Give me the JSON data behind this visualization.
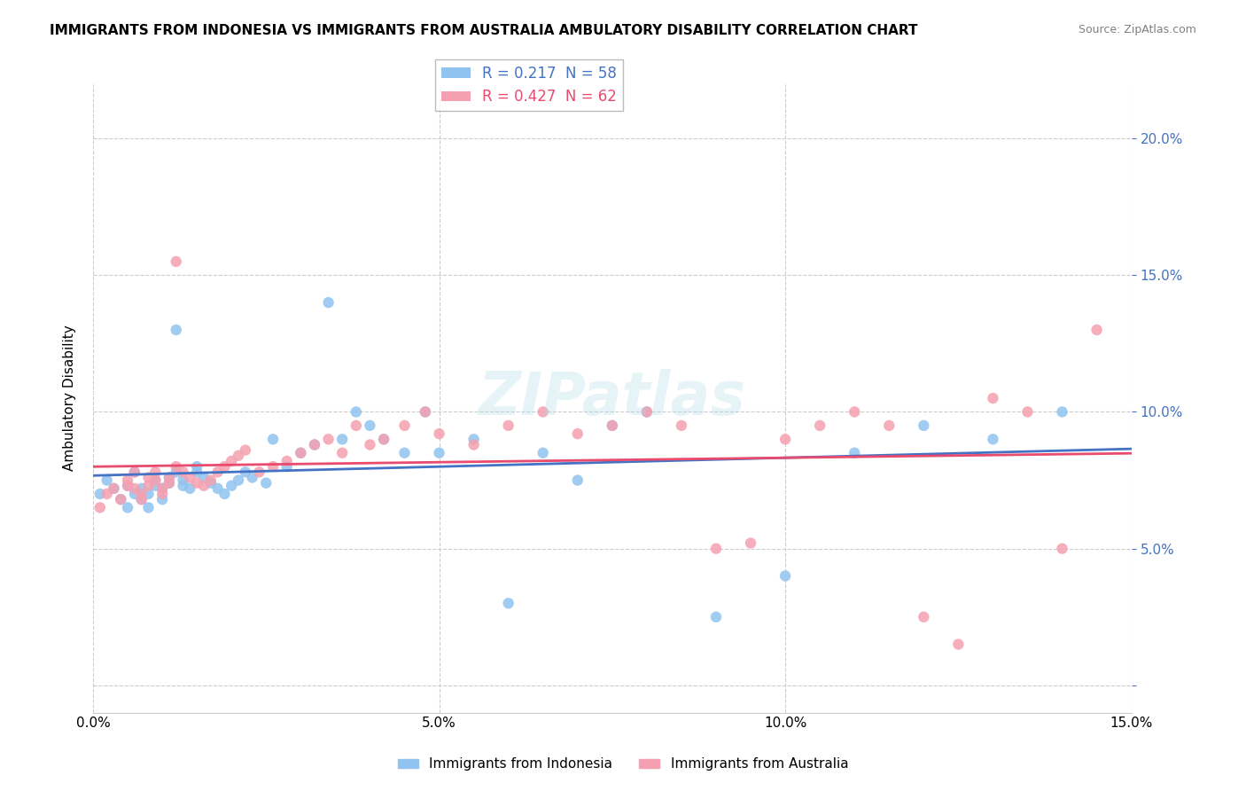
{
  "title": "IMMIGRANTS FROM INDONESIA VS IMMIGRANTS FROM AUSTRALIA AMBULATORY DISABILITY CORRELATION CHART",
  "source": "Source: ZipAtlas.com",
  "xlabel": "",
  "ylabel": "Ambulatory Disability",
  "x_axis_label_bottom": "",
  "legend_label_1": "Immigrants from Indonesia",
  "legend_label_2": "Immigrants from Australia",
  "R1": 0.217,
  "N1": 58,
  "R2": 0.427,
  "N2": 62,
  "color_indonesia": "#91c3f0",
  "color_australia": "#f5a0b0",
  "line_color_indonesia": "#4472c4",
  "line_color_australia": "#e94b6e",
  "xlim": [
    0.0,
    0.15
  ],
  "ylim": [
    0.0,
    0.22
  ],
  "x_ticks": [
    0.0,
    0.05,
    0.1,
    0.15
  ],
  "x_tick_labels": [
    "0.0%",
    "5.0%",
    "10.0%",
    "15.0%"
  ],
  "y_ticks": [
    0.0,
    0.05,
    0.1,
    0.15,
    0.2
  ],
  "y_tick_labels": [
    "",
    "5.0%",
    "10.0%",
    "15.0%",
    "20.0%"
  ],
  "indonesia_x": [
    0.001,
    0.002,
    0.003,
    0.004,
    0.005,
    0.005,
    0.006,
    0.006,
    0.007,
    0.007,
    0.008,
    0.008,
    0.009,
    0.009,
    0.01,
    0.01,
    0.011,
    0.011,
    0.012,
    0.012,
    0.013,
    0.013,
    0.014,
    0.015,
    0.015,
    0.016,
    0.017,
    0.018,
    0.019,
    0.02,
    0.021,
    0.022,
    0.023,
    0.025,
    0.026,
    0.028,
    0.03,
    0.032,
    0.034,
    0.036,
    0.038,
    0.04,
    0.042,
    0.045,
    0.048,
    0.05,
    0.055,
    0.06,
    0.065,
    0.07,
    0.075,
    0.08,
    0.09,
    0.1,
    0.11,
    0.12,
    0.13,
    0.14
  ],
  "indonesia_y": [
    0.07,
    0.075,
    0.072,
    0.068,
    0.065,
    0.073,
    0.07,
    0.078,
    0.072,
    0.068,
    0.065,
    0.07,
    0.075,
    0.073,
    0.068,
    0.072,
    0.076,
    0.074,
    0.13,
    0.078,
    0.075,
    0.073,
    0.072,
    0.08,
    0.078,
    0.076,
    0.074,
    0.072,
    0.07,
    0.073,
    0.075,
    0.078,
    0.076,
    0.074,
    0.09,
    0.08,
    0.085,
    0.088,
    0.14,
    0.09,
    0.1,
    0.095,
    0.09,
    0.085,
    0.1,
    0.085,
    0.09,
    0.03,
    0.085,
    0.075,
    0.095,
    0.1,
    0.025,
    0.04,
    0.085,
    0.095,
    0.09,
    0.1
  ],
  "australia_x": [
    0.001,
    0.002,
    0.003,
    0.004,
    0.005,
    0.005,
    0.006,
    0.006,
    0.007,
    0.007,
    0.008,
    0.008,
    0.009,
    0.009,
    0.01,
    0.01,
    0.011,
    0.011,
    0.012,
    0.012,
    0.013,
    0.014,
    0.015,
    0.016,
    0.017,
    0.018,
    0.019,
    0.02,
    0.021,
    0.022,
    0.024,
    0.026,
    0.028,
    0.03,
    0.032,
    0.034,
    0.036,
    0.038,
    0.04,
    0.042,
    0.045,
    0.048,
    0.05,
    0.055,
    0.06,
    0.065,
    0.07,
    0.075,
    0.08,
    0.085,
    0.09,
    0.095,
    0.1,
    0.105,
    0.11,
    0.115,
    0.12,
    0.125,
    0.13,
    0.135,
    0.14,
    0.145
  ],
  "australia_y": [
    0.065,
    0.07,
    0.072,
    0.068,
    0.075,
    0.073,
    0.078,
    0.072,
    0.07,
    0.068,
    0.073,
    0.076,
    0.075,
    0.078,
    0.072,
    0.07,
    0.076,
    0.074,
    0.155,
    0.08,
    0.078,
    0.076,
    0.074,
    0.073,
    0.075,
    0.078,
    0.08,
    0.082,
    0.084,
    0.086,
    0.078,
    0.08,
    0.082,
    0.085,
    0.088,
    0.09,
    0.085,
    0.095,
    0.088,
    0.09,
    0.095,
    0.1,
    0.092,
    0.088,
    0.095,
    0.1,
    0.092,
    0.095,
    0.1,
    0.095,
    0.05,
    0.052,
    0.09,
    0.095,
    0.1,
    0.095,
    0.025,
    0.015,
    0.105,
    0.1,
    0.05,
    0.13
  ]
}
